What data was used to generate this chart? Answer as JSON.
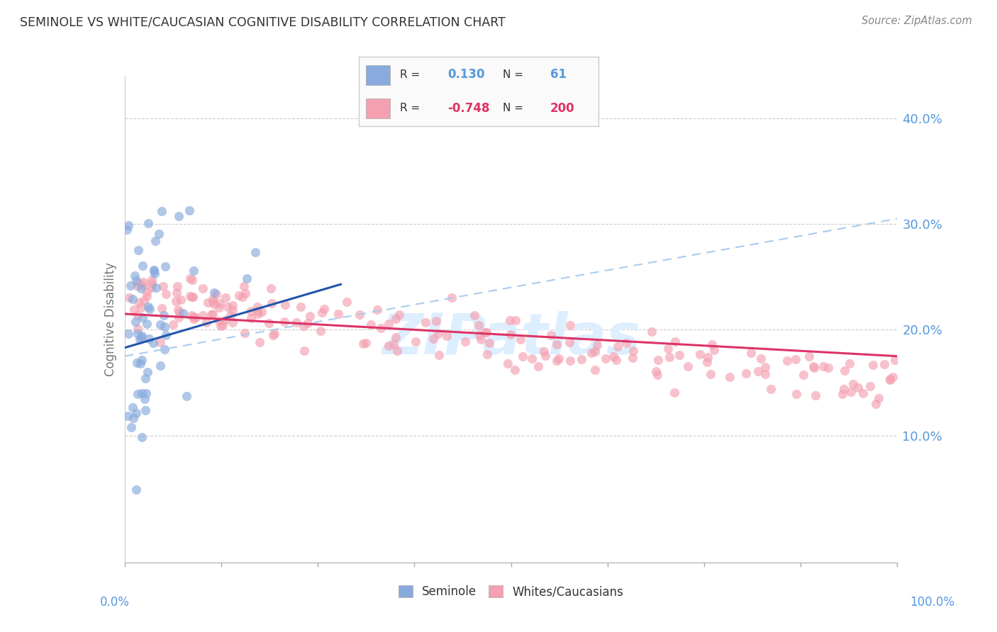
{
  "title": "SEMINOLE VS WHITE/CAUCASIAN COGNITIVE DISABILITY CORRELATION CHART",
  "source": "Source: ZipAtlas.com",
  "ylabel": "Cognitive Disability",
  "y_tick_labels": [
    "10.0%",
    "20.0%",
    "30.0%",
    "40.0%"
  ],
  "y_tick_values": [
    0.1,
    0.2,
    0.3,
    0.4
  ],
  "x_range": [
    0.0,
    1.0
  ],
  "y_range": [
    -0.02,
    0.44
  ],
  "seminole_color": "#88AADD",
  "white_color": "#F4A0B0",
  "seminole_line_color": "#2255AA",
  "white_line_color": "#DD3366",
  "dash_line_color": "#AACCEE",
  "background_color": "#FFFFFF",
  "grid_color": "#CCCCCC",
  "title_color": "#333333",
  "tick_color": "#5599DD",
  "ylabel_color": "#777777",
  "source_color": "#888888",
  "watermark_color": "#DDEEFF",
  "legend_text_color": "#333333"
}
